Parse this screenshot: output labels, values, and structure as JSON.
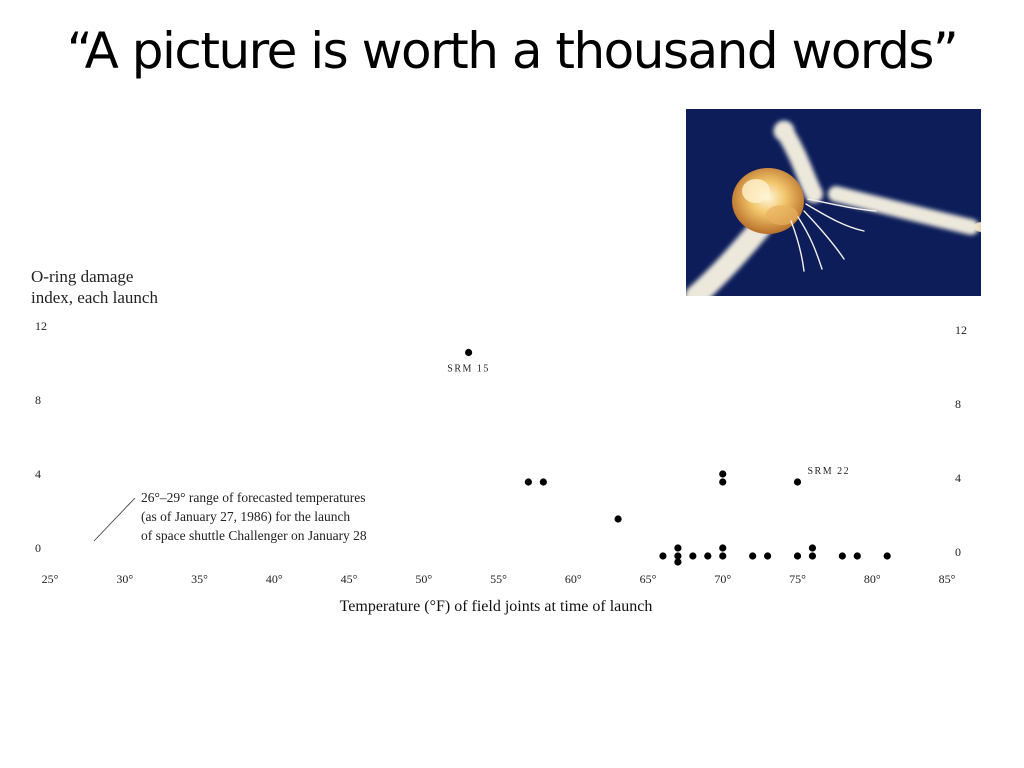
{
  "slide": {
    "title": "“A picture is worth a thousand words”"
  },
  "photo": {
    "subject": "challenger-explosion-photo",
    "sky_color": "#0c1d5a",
    "smoke_color": "#ece8dc",
    "fire_color": "#f2c46a"
  },
  "chart_data": {
    "type": "scatter",
    "ylabel_lines": [
      "O-ring damage",
      "index, each launch"
    ],
    "xlabel": "Temperature (°F) of field joints at time of launch",
    "xlim": [
      25,
      85
    ],
    "ylim": [
      0,
      12
    ],
    "x_ticks": [
      25,
      30,
      35,
      40,
      45,
      50,
      55,
      60,
      65,
      70,
      75,
      80,
      85
    ],
    "x_tick_labels": [
      "25°",
      "30°",
      "35°",
      "40°",
      "45°",
      "50°",
      "55°",
      "60°",
      "65°",
      "70°",
      "75°",
      "80°",
      "85°"
    ],
    "y_ticks": [
      0,
      4,
      8,
      12
    ],
    "y_tick_labels": [
      "0",
      "4",
      "8",
      "12"
    ],
    "grid": false,
    "legend": "none",
    "mark_color": "#000000",
    "points": [
      {
        "x": 53,
        "y": 11,
        "label": "SRM 15"
      },
      {
        "x": 57,
        "y": 4
      },
      {
        "x": 58,
        "y": 4
      },
      {
        "x": 63,
        "y": 2
      },
      {
        "x": 66,
        "y": 0
      },
      {
        "x": 67,
        "y": 0
      },
      {
        "x": 67,
        "y": 0
      },
      {
        "x": 67,
        "y": 0
      },
      {
        "x": 68,
        "y": 0
      },
      {
        "x": 69,
        "y": 0
      },
      {
        "x": 70,
        "y": 4
      },
      {
        "x": 70,
        "y": 4
      },
      {
        "x": 70,
        "y": 0
      },
      {
        "x": 70,
        "y": 0
      },
      {
        "x": 72,
        "y": 0
      },
      {
        "x": 73,
        "y": 0
      },
      {
        "x": 75,
        "y": 4,
        "label": "SRM 22"
      },
      {
        "x": 75,
        "y": 0
      },
      {
        "x": 76,
        "y": 0
      },
      {
        "x": 76,
        "y": 0
      },
      {
        "x": 78,
        "y": 0
      },
      {
        "x": 79,
        "y": 0
      },
      {
        "x": 81,
        "y": 0
      }
    ],
    "annotation": {
      "lines": [
        "26°–29° range of forecasted temperatures",
        "(as of January 27, 1986) for the launch",
        "of space shuttle Challenger on January 28"
      ]
    }
  }
}
